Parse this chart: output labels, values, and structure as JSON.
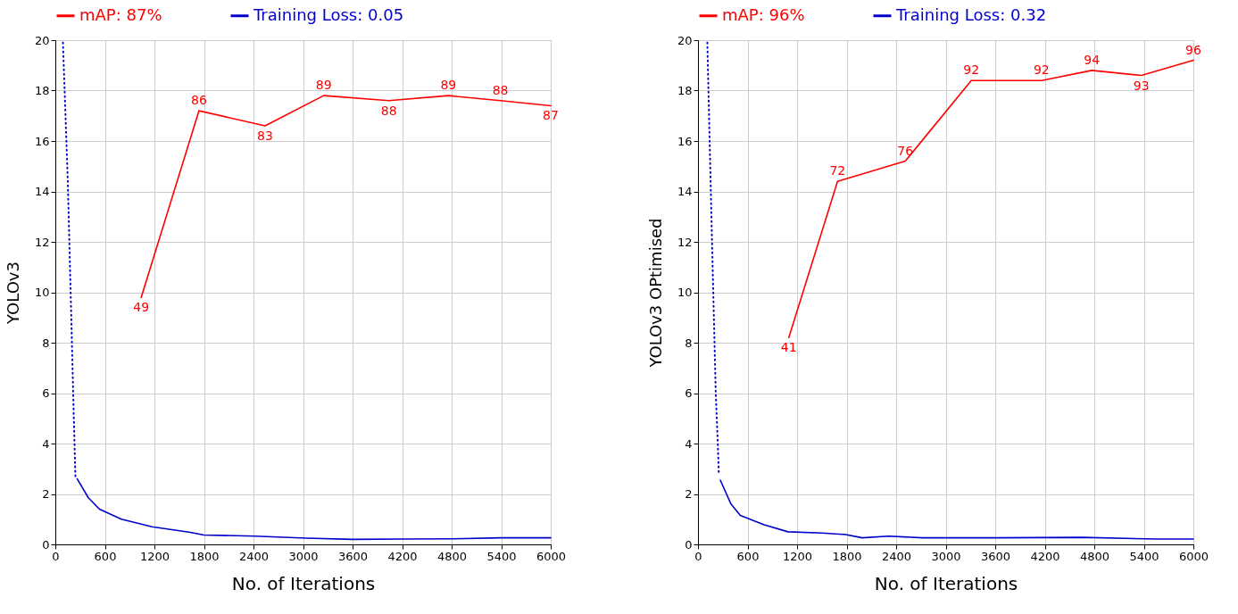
{
  "chart_data": [
    {
      "type": "line",
      "xlabel": "No. of Iterations",
      "ylabel": "YOLOv3",
      "xlim": [
        0,
        6000
      ],
      "ylim": [
        0,
        20
      ],
      "xticks": [
        0,
        600,
        1200,
        1800,
        2400,
        3000,
        3600,
        4200,
        4800,
        5400,
        6000
      ],
      "yticks": [
        0,
        2,
        4,
        6,
        8,
        10,
        12,
        14,
        16,
        18,
        20
      ],
      "y2lim": [
        0,
        100
      ],
      "grid": true,
      "legend": "top",
      "marker": "none",
      "series": [
        {
          "name": "mAP: 87%",
          "color": "#ff0000",
          "line_style": "solid",
          "axis": "y2",
          "x": [
            1040,
            1740,
            2540,
            3250,
            4040,
            4760,
            5390,
            6000
          ],
          "values": [
            49,
            86,
            83,
            89,
            88,
            89,
            88,
            87
          ],
          "value_labels": [
            "49",
            "86",
            "83",
            "89",
            "88",
            "89",
            "88",
            "87"
          ]
        },
        {
          "color": "#0000cc",
          "line_style": "dotted",
          "x": [
            92,
            150,
            190,
            220,
            243
          ],
          "values": [
            19.9,
            14.5,
            9.4,
            5.5,
            2.7
          ]
        },
        {
          "name": "Training Loss: 0.05",
          "color": "#0000cc",
          "line_style": "solid",
          "x": [
            265,
            400,
            534,
            800,
            1170,
            1634,
            1800,
            2420,
            3040,
            3600,
            4200,
            4800,
            5400,
            6000
          ],
          "values": [
            2.6,
            1.85,
            1.4,
            1.0,
            0.7,
            0.48,
            0.37,
            0.33,
            0.25,
            0.2,
            0.21,
            0.22,
            0.26,
            0.26
          ]
        }
      ]
    },
    {
      "type": "line",
      "xlabel": "No. of Iterations",
      "ylabel": "YOLOv3 OPtimised",
      "xlim": [
        0,
        6000
      ],
      "ylim": [
        0,
        20
      ],
      "xticks": [
        0,
        600,
        1200,
        1800,
        2400,
        3000,
        3600,
        4200,
        4800,
        5400,
        6000
      ],
      "yticks": [
        0,
        2,
        4,
        6,
        8,
        10,
        12,
        14,
        16,
        18,
        20
      ],
      "y2lim": [
        0,
        100
      ],
      "grid": true,
      "legend": "top",
      "marker": "none",
      "series": [
        {
          "name": "mAP: 96%",
          "color": "#ff0000",
          "line_style": "solid",
          "axis": "y2",
          "x": [
            1100,
            1690,
            2510,
            3310,
            4160,
            4770,
            5370,
            6000
          ],
          "values": [
            41,
            72,
            76,
            92,
            92,
            94,
            93,
            96
          ],
          "value_labels": [
            "41",
            "72",
            "76",
            "92",
            "92",
            "94",
            "93",
            "96"
          ]
        },
        {
          "color": "#0000cc",
          "line_style": "dotted",
          "x": [
            113,
            170,
            215,
            240,
            253
          ],
          "values": [
            19.9,
            12.0,
            6.0,
            4.0,
            2.75
          ]
        },
        {
          "name": "Training Loss: 0.32",
          "color": "#0000cc",
          "line_style": "solid",
          "x": [
            270,
            400,
            512,
            800,
            1090,
            1500,
            1790,
            1990,
            2310,
            2720,
            3600,
            4650,
            5550,
            6000
          ],
          "values": [
            2.55,
            1.6,
            1.15,
            0.78,
            0.5,
            0.45,
            0.39,
            0.26,
            0.33,
            0.26,
            0.26,
            0.28,
            0.21,
            0.21
          ]
        }
      ]
    }
  ]
}
